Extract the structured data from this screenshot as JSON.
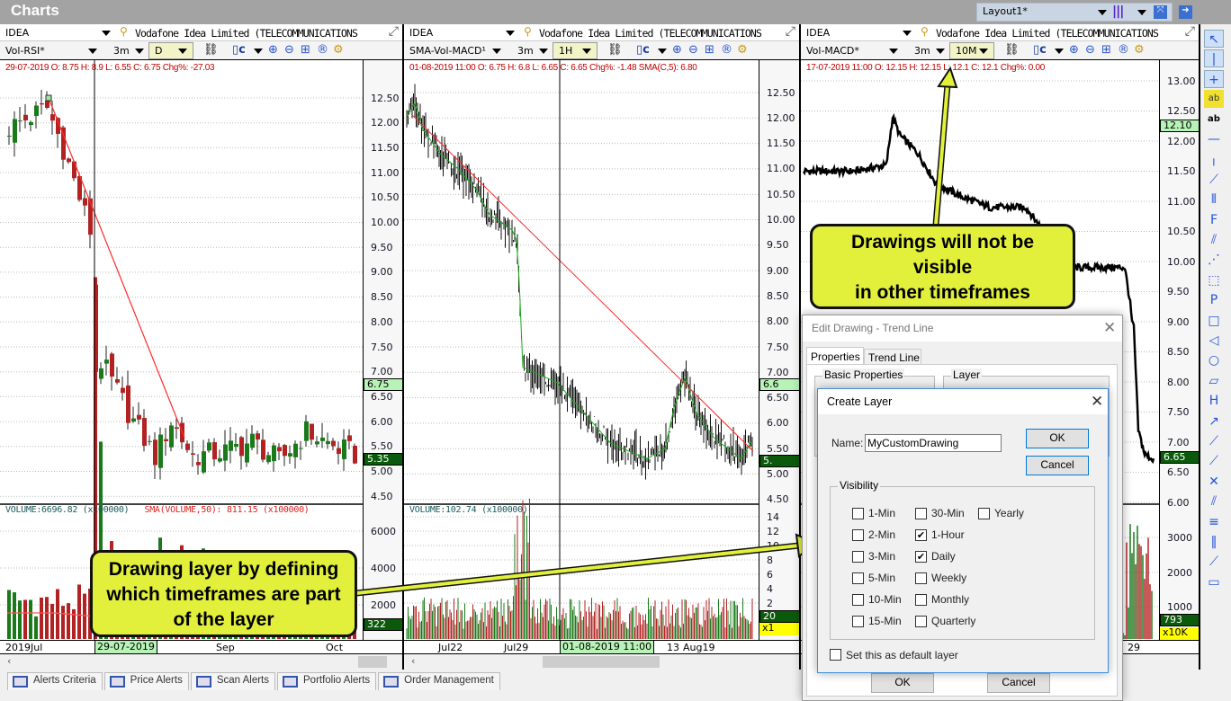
{
  "app": {
    "title": "Charts",
    "layout": "Layout1*"
  },
  "panes": [
    {
      "symbol": "IDEA",
      "company": "Vodafone Idea Limited  (TELECOMMUNICATIONS",
      "template": "Vol-RSI*",
      "period": "3m",
      "timeframe": "D",
      "info": "29-07-2019  O: 8.75  H: 8.9  L: 6.55  C: 6.75  Chg%: -27.03",
      "price_ticks": [
        "12.50",
        "12.00",
        "11.50",
        "11.00",
        "10.50",
        "10.00",
        "9.50",
        "9.00",
        "8.50",
        "8.00",
        "7.50",
        "7.00",
        "6.50",
        "6.00",
        "5.50",
        "5.00",
        "4.50"
      ],
      "cursor_price": "6.75",
      "last_price": "5.35",
      "volume_info": "VOLUME:6696.82 (x100000)",
      "sma_info": "SMA(VOLUME,50):  811.15 (x100000)",
      "volume_ticks": [
        "6000",
        "4000",
        "2000"
      ],
      "last_volume": "322",
      "volume_scale": "",
      "dates": [
        "2019Jul",
        "Sep",
        "Oct"
      ],
      "cursor_date": "29-07-2019"
    },
    {
      "symbol": "IDEA",
      "company": "Vodafone Idea Limited  (TELECOMMUNICATIONS",
      "template": "SMA-Vol-MACD¹",
      "period": "3m",
      "timeframe": "1H",
      "info": "01-08-2019 11:00  O: 6.75  H: 6.8  L: 6.65  C: 6.65  Chg%: -1.48  SMA(C,5): 6.80",
      "price_ticks": [
        "12.50",
        "12.00",
        "11.50",
        "11.00",
        "10.50",
        "10.00",
        "9.50",
        "9.00",
        "8.50",
        "8.00",
        "7.50",
        "7.00",
        "6.50",
        "6.00",
        "5.50",
        "5.00",
        "4.50"
      ],
      "cursor_price": "6.6",
      "last_price": "5.",
      "volume_info": "VOLUME:102.74 (x100000)",
      "sma_info": "",
      "volume_ticks": [
        "14",
        "12",
        "10",
        "8",
        "6",
        "4",
        "2"
      ],
      "last_volume": "20",
      "volume_scale": "x1",
      "dates": [
        "Jul22",
        "Jul29",
        "13",
        "Aug19"
      ],
      "cursor_date": "01-08-2019 11:00"
    },
    {
      "symbol": "IDEA",
      "company": "Vodafone Idea Limited  (TELECOMMUNICATIONS",
      "template": "Vol-MACD*",
      "period": "3m",
      "timeframe": "10M",
      "info": "17-07-2019 11:00  O: 12.15  H: 12.15  L: 12.1  C: 12.1  Chg%: 0.00",
      "price_ticks": [
        "13.00",
        "12.50",
        "12.00",
        "11.50",
        "11.00",
        "10.50",
        "10.00",
        "9.50",
        "9.00",
        "8.50",
        "8.00",
        "7.50",
        "7.00",
        "6.50",
        "6.00"
      ],
      "cursor_price": "12.10",
      "last_price": "6.65",
      "volume_info": "",
      "sma_info": "",
      "volume_ticks": [
        "3000",
        "2000",
        "1000"
      ],
      "last_volume": "793",
      "volume_scale": "x10K",
      "dates": [
        "29"
      ],
      "cursor_date": ""
    }
  ],
  "bottom_tabs": [
    "Alerts Criteria",
    "Price Alerts",
    "Scan Alerts",
    "Portfolio Alerts",
    "Order Management"
  ],
  "callouts": {
    "top": [
      "Drawings will not be",
      "visible",
      "in other timeframes"
    ],
    "bottom": [
      "Drawing layer by defining",
      "which timeframes are part",
      "of the layer"
    ]
  },
  "edit_drawing": {
    "title": "Edit Drawing - Trend Line",
    "tabs": [
      "Properties",
      "Trend Line"
    ],
    "groups": [
      "Basic Properties",
      "Layer"
    ],
    "ok": "OK",
    "cancel": "Cancel"
  },
  "create_layer": {
    "title": "Create Layer",
    "name_label": "Name:",
    "name_value": "MyCustomDrawing",
    "ok": "OK",
    "cancel": "Cancel",
    "visibility_label": "Visibility",
    "options": [
      {
        "label": "1-Min",
        "checked": false
      },
      {
        "label": "2-Min",
        "checked": false
      },
      {
        "label": "3-Min",
        "checked": false
      },
      {
        "label": "5-Min",
        "checked": false
      },
      {
        "label": "10-Min",
        "checked": false
      },
      {
        "label": "15-Min",
        "checked": false
      },
      {
        "label": "30-Min",
        "checked": false
      },
      {
        "label": "1-Hour",
        "checked": true
      },
      {
        "label": "Daily",
        "checked": true
      },
      {
        "label": "Weekly",
        "checked": false
      },
      {
        "label": "Monthly",
        "checked": false
      },
      {
        "label": "Quarterly",
        "checked": false
      },
      {
        "label": "Yearly",
        "checked": false
      }
    ],
    "default_layer_label": "Set this as default layer",
    "default_layer_checked": false
  },
  "colors": {
    "up": "#1a7a1a",
    "down": "#b22222",
    "trendline": "#ff2a2a",
    "callout": "#e2f03c",
    "highlight": "#b7f3b7"
  }
}
